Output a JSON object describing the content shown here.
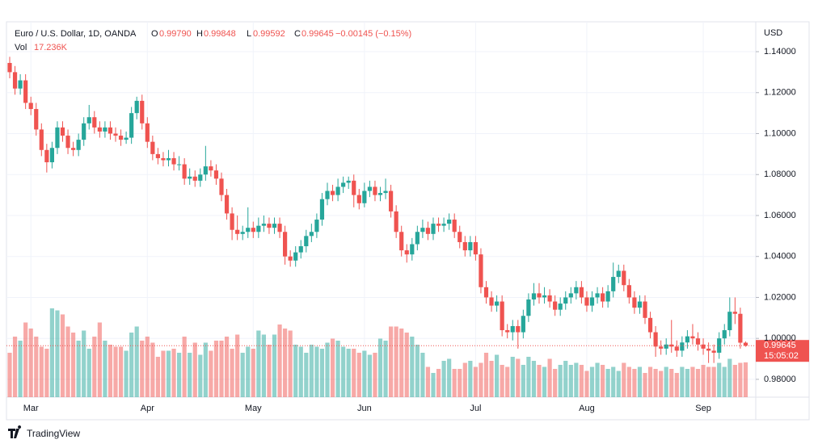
{
  "chart_data": {
    "type": "candlestick",
    "title": "Euro / U.S. Dollar, 1D, OANDA",
    "ohlc": [
      {
        "name": "O",
        "value": 0.9979,
        "label": "0.99790"
      },
      {
        "name": "H",
        "value": 0.99848,
        "label": "0.99848"
      },
      {
        "name": "L",
        "value": 0.99592,
        "label": "0.99592"
      },
      {
        "name": "C",
        "value": 0.99645,
        "label": "0.99645"
      }
    ],
    "change": "−0.00145 (−0.15%)",
    "volume_label": "Vol",
    "volume_value": {
      "value": 17236,
      "label": "17.236K"
    },
    "currency": "USD",
    "last_price": 0.99645,
    "countdown": "15:05:02",
    "brand": "TradingView",
    "up_color": "#26a69a",
    "down_color": "#ef5350",
    "grid": true,
    "ylim": [
      0.9713,
      1.1542
    ],
    "yticks": [
      {
        "value": 0.98,
        "label": "0.98000"
      },
      {
        "value": 1.0,
        "label": "1.00000"
      },
      {
        "value": 1.02,
        "label": "1.02000"
      },
      {
        "value": 1.04,
        "label": "1.04000"
      },
      {
        "value": 1.06,
        "label": "1.06000"
      },
      {
        "value": 1.08,
        "label": "1.08000"
      },
      {
        "value": 1.1,
        "label": "1.10000"
      },
      {
        "value": 1.12,
        "label": "1.12000"
      },
      {
        "value": 1.14,
        "label": "1.14000"
      }
    ],
    "volume_lim": [
      0,
      50000
    ],
    "categories": [
      null,
      null,
      null,
      null,
      "Mar",
      null,
      null,
      null,
      null,
      null,
      null,
      null,
      null,
      null,
      null,
      null,
      null,
      null,
      null,
      null,
      null,
      null,
      null,
      null,
      null,
      null,
      "Apr",
      null,
      null,
      null,
      null,
      null,
      null,
      null,
      null,
      null,
      null,
      null,
      null,
      null,
      null,
      null,
      null,
      null,
      null,
      null,
      "May",
      null,
      null,
      null,
      null,
      null,
      null,
      null,
      null,
      null,
      null,
      null,
      null,
      null,
      null,
      null,
      null,
      null,
      null,
      null,
      null,
      "Jun",
      null,
      null,
      null,
      null,
      null,
      null,
      null,
      null,
      null,
      null,
      null,
      null,
      null,
      null,
      null,
      null,
      null,
      null,
      null,
      null,
      "Jul",
      null,
      null,
      null,
      null,
      null,
      null,
      null,
      null,
      null,
      null,
      null,
      null,
      null,
      null,
      null,
      null,
      null,
      null,
      null,
      null,
      "Aug",
      null,
      null,
      null,
      null,
      null,
      null,
      null,
      null,
      null,
      null,
      null,
      null,
      null,
      null,
      null,
      null,
      null,
      null,
      null,
      null,
      null,
      "Sep",
      null,
      null,
      null,
      null,
      null,
      null,
      null,
      null
    ],
    "open": [
      1.1345,
      1.13,
      1.122,
      1.126,
      1.115,
      1.112,
      1.102,
      1.092,
      1.086,
      1.093,
      1.103,
      1.099,
      1.093,
      1.092,
      1.097,
      1.105,
      1.108,
      1.103,
      1.101,
      1.103,
      1.1,
      1.099,
      1.097,
      1.098,
      1.11,
      1.116,
      1.105,
      1.096,
      1.09,
      1.088,
      1.087,
      1.088,
      1.085,
      1.085,
      1.078,
      1.079,
      1.077,
      1.08,
      1.084,
      1.082,
      1.078,
      1.07,
      1.061,
      1.053,
      1.051,
      1.052,
      1.054,
      1.052,
      1.055,
      1.056,
      1.054,
      1.056,
      1.052,
      1.04,
      1.038,
      1.042,
      1.045,
      1.05,
      1.052,
      1.058,
      1.068,
      1.072,
      1.07,
      1.074,
      1.076,
      1.077,
      1.07,
      1.066,
      1.072,
      1.074,
      1.07,
      1.071,
      1.072,
      1.062,
      1.052,
      1.043,
      1.041,
      1.046,
      1.052,
      1.054,
      1.051,
      1.056,
      1.055,
      1.056,
      1.058,
      1.052,
      1.047,
      1.043,
      1.047,
      1.041,
      1.025,
      1.02,
      1.016,
      1.018,
      1.004,
      1.003,
      1.006,
      1.003,
      1.011,
      1.019,
      1.022,
      1.02,
      1.021,
      1.018,
      1.014,
      1.017,
      1.02,
      1.022,
      1.025,
      1.02,
      1.016,
      1.02,
      1.022,
      1.018,
      1.023,
      1.03,
      1.033,
      1.026,
      1.02,
      1.015,
      1.018,
      1.01,
      1.003,
      0.996,
      0.995,
      0.997,
      0.996,
      0.994,
      0.998,
      1.001,
      1.0,
      0.997,
      0.995,
      0.994,
      0.993,
      1.0,
      1.004,
      1.013,
      1.012,
      0.9979
    ],
    "high": [
      1.1375,
      1.133,
      1.129,
      1.129,
      1.118,
      1.115,
      1.105,
      1.095,
      1.096,
      1.106,
      1.106,
      1.102,
      1.096,
      1.1,
      1.108,
      1.114,
      1.111,
      1.106,
      1.106,
      1.106,
      1.103,
      1.102,
      1.101,
      1.113,
      1.118,
      1.119,
      1.108,
      1.099,
      1.093,
      1.091,
      1.092,
      1.091,
      1.089,
      1.088,
      1.083,
      1.082,
      1.083,
      1.094,
      1.087,
      1.085,
      1.081,
      1.073,
      1.064,
      1.06,
      1.055,
      1.064,
      1.057,
      1.059,
      1.06,
      1.059,
      1.059,
      1.059,
      1.055,
      1.043,
      1.045,
      1.048,
      1.053,
      1.056,
      1.061,
      1.071,
      1.076,
      1.075,
      1.078,
      1.079,
      1.079,
      1.08,
      1.073,
      1.076,
      1.077,
      1.077,
      1.074,
      1.078,
      1.075,
      1.065,
      1.055,
      1.046,
      1.049,
      1.055,
      1.058,
      1.057,
      1.059,
      1.059,
      1.059,
      1.061,
      1.061,
      1.055,
      1.05,
      1.05,
      1.05,
      1.044,
      1.028,
      1.023,
      1.021,
      1.021,
      1.007,
      1.009,
      1.009,
      1.014,
      1.022,
      1.027,
      1.027,
      1.025,
      1.024,
      1.021,
      1.02,
      1.023,
      1.025,
      1.028,
      1.028,
      1.023,
      1.023,
      1.025,
      1.025,
      1.026,
      1.037,
      1.036,
      1.036,
      1.029,
      1.023,
      1.021,
      1.021,
      1.013,
      1.006,
      0.999,
      1.0,
      1.009,
      0.999,
      1.001,
      1.004,
      1.007,
      1.003,
      1.0,
      0.998,
      0.997,
      1.003,
      1.007,
      1.02,
      1.02,
      1.015,
      0.99848
    ],
    "low": [
      1.127,
      1.119,
      1.119,
      1.112,
      1.109,
      1.099,
      1.089,
      1.081,
      1.083,
      1.09,
      1.096,
      1.09,
      1.089,
      1.089,
      1.094,
      1.102,
      1.1,
      1.098,
      1.098,
      1.097,
      1.096,
      1.094,
      1.095,
      1.095,
      1.107,
      1.102,
      1.093,
      1.087,
      1.085,
      1.084,
      1.084,
      1.082,
      1.082,
      1.075,
      1.075,
      1.074,
      1.074,
      1.077,
      1.079,
      1.075,
      1.067,
      1.058,
      1.048,
      1.048,
      1.048,
      1.049,
      1.049,
      1.049,
      1.052,
      1.051,
      1.051,
      1.049,
      1.036,
      1.035,
      1.035,
      1.039,
      1.042,
      1.047,
      1.049,
      1.055,
      1.065,
      1.067,
      1.067,
      1.071,
      1.073,
      1.064,
      1.063,
      1.064,
      1.069,
      1.067,
      1.067,
      1.068,
      1.059,
      1.049,
      1.04,
      1.037,
      1.038,
      1.043,
      1.049,
      1.048,
      1.048,
      1.052,
      1.052,
      1.053,
      1.049,
      1.044,
      1.04,
      1.04,
      1.038,
      1.022,
      1.017,
      1.013,
      1.013,
      1.001,
      1.0,
      0.999,
      0.995,
      1.0,
      1.008,
      1.016,
      1.017,
      1.017,
      1.015,
      1.011,
      1.011,
      1.014,
      1.017,
      1.019,
      1.017,
      1.013,
      1.013,
      1.017,
      1.015,
      1.015,
      1.02,
      1.027,
      1.023,
      1.017,
      1.012,
      1.012,
      1.007,
      1.0,
      0.991,
      0.992,
      0.992,
      0.993,
      0.991,
      0.991,
      0.995,
      0.997,
      0.994,
      0.992,
      0.988,
      0.988,
      0.99,
      0.997,
      1.001,
      1.007,
      0.995,
      0.99592
    ],
    "close": [
      1.13,
      1.122,
      1.126,
      1.115,
      1.112,
      1.102,
      1.092,
      1.086,
      1.093,
      1.103,
      1.099,
      1.093,
      1.092,
      1.097,
      1.105,
      1.108,
      1.103,
      1.101,
      1.103,
      1.1,
      1.099,
      1.097,
      1.098,
      1.11,
      1.116,
      1.105,
      1.096,
      1.09,
      1.088,
      1.087,
      1.088,
      1.085,
      1.085,
      1.078,
      1.079,
      1.077,
      1.08,
      1.084,
      1.082,
      1.078,
      1.07,
      1.061,
      1.053,
      1.051,
      1.052,
      1.054,
      1.052,
      1.055,
      1.056,
      1.054,
      1.056,
      1.052,
      1.04,
      1.038,
      1.042,
      1.045,
      1.05,
      1.052,
      1.058,
      1.068,
      1.072,
      1.07,
      1.074,
      1.076,
      1.077,
      1.07,
      1.066,
      1.072,
      1.074,
      1.07,
      1.071,
      1.072,
      1.062,
      1.052,
      1.043,
      1.041,
      1.046,
      1.052,
      1.054,
      1.051,
      1.056,
      1.055,
      1.056,
      1.058,
      1.052,
      1.047,
      1.043,
      1.047,
      1.041,
      1.025,
      1.02,
      1.016,
      1.018,
      1.004,
      1.003,
      1.006,
      1.003,
      1.011,
      1.019,
      1.022,
      1.02,
      1.021,
      1.018,
      1.014,
      1.017,
      1.02,
      1.022,
      1.025,
      1.02,
      1.016,
      1.02,
      1.022,
      1.018,
      1.023,
      1.03,
      1.033,
      1.026,
      1.02,
      1.015,
      1.018,
      1.01,
      1.003,
      0.996,
      0.995,
      0.997,
      0.996,
      0.994,
      0.998,
      1.001,
      1.0,
      0.997,
      0.995,
      0.994,
      0.993,
      1.0,
      1.004,
      1.013,
      1.012,
      0.9979,
      0.99645
    ],
    "volume": [
      22000,
      30000,
      28000,
      37000,
      34000,
      30000,
      25000,
      24000,
      44000,
      43000,
      41000,
      35000,
      32000,
      28000,
      33000,
      24000,
      30000,
      37000,
      28000,
      26000,
      25000,
      25000,
      23000,
      32000,
      35000,
      28000,
      30000,
      27000,
      20000,
      23000,
      23000,
      24000,
      22000,
      30000,
      22000,
      27000,
      21000,
      27000,
      23000,
      28000,
      28000,
      30000,
      24000,
      31000,
      22000,
      25000,
      24000,
      33000,
      31000,
      26000,
      31000,
      36000,
      34000,
      33000,
      26000,
      25000,
      22000,
      26000,
      25000,
      24000,
      27000,
      29000,
      28000,
      25000,
      24000,
      24000,
      22000,
      23000,
      21000,
      22000,
      29000,
      28000,
      35000,
      35000,
      34000,
      32000,
      30000,
      26000,
      22000,
      15000,
      12000,
      14000,
      18000,
      19000,
      14000,
      14000,
      17000,
      18000,
      15000,
      17000,
      22000,
      18000,
      21000,
      16000,
      15000,
      20000,
      19000,
      16000,
      20000,
      18000,
      16000,
      15000,
      19000,
      14000,
      16000,
      18000,
      16000,
      17000,
      16000,
      13000,
      15000,
      17000,
      16000,
      14000,
      15000,
      13000,
      17000,
      15000,
      14000,
      15000,
      12000,
      15000,
      14000,
      13000,
      15000,
      14000,
      12000,
      15000,
      14000,
      15000,
      14000,
      16000,
      15000,
      15000,
      17000,
      15000,
      19000,
      16000,
      17000,
      17236
    ]
  }
}
